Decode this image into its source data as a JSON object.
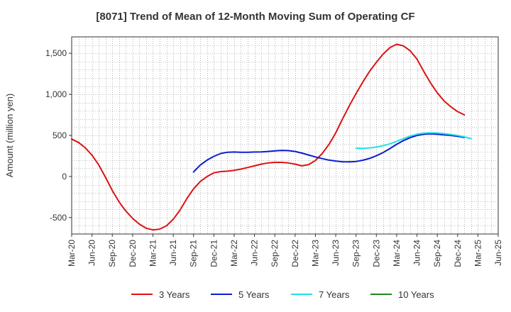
{
  "chart_data": {
    "type": "line",
    "title": "[8071]  Trend of Mean of 12-Month Moving Sum of Operating CF",
    "xlabel": "",
    "ylabel": "Amount (million yen)",
    "ylim": [
      -700,
      1700
    ],
    "yticks": [
      1500,
      1000,
      500,
      0,
      -500
    ],
    "ytick_labels": [
      "1,500",
      "1,000",
      "500",
      "0",
      "-500"
    ],
    "xlim": [
      "2020-03",
      "2025-06"
    ],
    "xtick_labels": [
      "Mar-20",
      "Jun-20",
      "Sep-20",
      "Dec-20",
      "Mar-21",
      "Jun-21",
      "Sep-21",
      "Dec-21",
      "Mar-22",
      "Jun-22",
      "Sep-22",
      "Dec-22",
      "Mar-23",
      "Jun-23",
      "Sep-23",
      "Dec-23",
      "Mar-24",
      "Jun-24",
      "Sep-24",
      "Dec-24",
      "Mar-25",
      "Jun-25"
    ],
    "grid": true,
    "legend_position": "bottom",
    "series": [
      {
        "name": "3 Years",
        "color": "#dd1111",
        "start_index": 0,
        "values": [
          455,
          415,
          350,
          260,
          140,
          -10,
          -170,
          -310,
          -420,
          -510,
          -580,
          -630,
          -650,
          -640,
          -600,
          -520,
          -410,
          -270,
          -150,
          -60,
          0,
          45,
          60,
          65,
          75,
          90,
          110,
          130,
          150,
          165,
          172,
          172,
          165,
          150,
          130,
          145,
          195,
          280,
          390,
          530,
          700,
          860,
          1010,
          1150,
          1280,
          1390,
          1490,
          1570,
          1610,
          1590,
          1530,
          1430,
          1280,
          1140,
          1020,
          920,
          850,
          790,
          750
        ]
      },
      {
        "name": "5 Years",
        "color": "#0a1ecc",
        "start_index": 18,
        "values": [
          55,
          140,
          200,
          245,
          280,
          295,
          298,
          295,
          295,
          298,
          300,
          305,
          312,
          318,
          315,
          305,
          285,
          262,
          238,
          218,
          200,
          188,
          180,
          178,
          183,
          198,
          220,
          252,
          292,
          340,
          392,
          437,
          473,
          500,
          515,
          520,
          515,
          508,
          500,
          490,
          475
        ]
      },
      {
        "name": "7 Years",
        "color": "#22e0e8",
        "start_index": 42,
        "values": [
          345,
          343,
          348,
          358,
          375,
          398,
          428,
          460,
          492,
          515,
          528,
          533,
          530,
          522,
          512,
          500,
          483,
          460
        ]
      },
      {
        "name": "10 Years",
        "color": "#1e8a1e",
        "start_index": 0,
        "values": []
      }
    ]
  }
}
